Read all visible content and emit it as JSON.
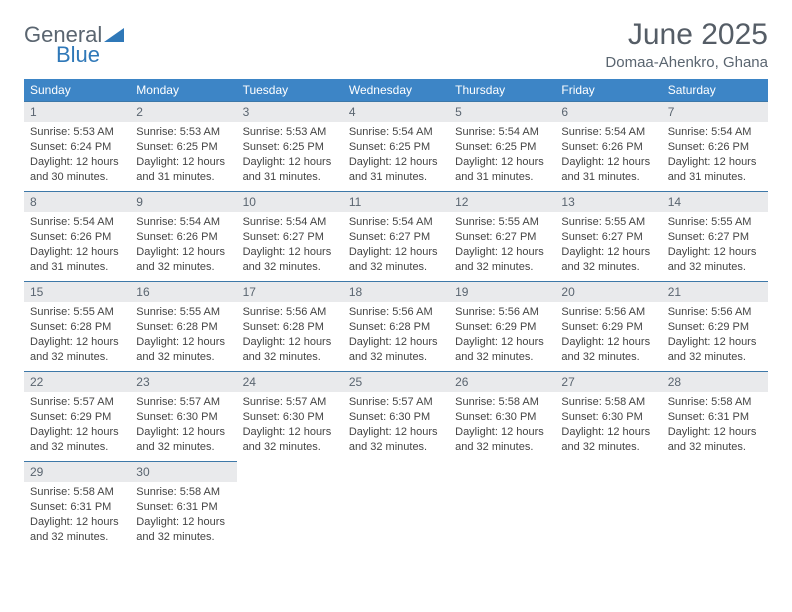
{
  "logo": {
    "word1": "General",
    "word2": "Blue"
  },
  "header": {
    "month": "June 2025",
    "location": "Domaa-Ahenkro, Ghana"
  },
  "style": {
    "header_bg": "#3d85c6",
    "header_text": "#ffffff",
    "daynum_bg": "#e9eaec",
    "daynum_border": "#3d78a8",
    "text_color": "#444444",
    "title_color": "#555d66"
  },
  "weekdays": [
    "Sunday",
    "Monday",
    "Tuesday",
    "Wednesday",
    "Thursday",
    "Friday",
    "Saturday"
  ],
  "days": [
    {
      "n": "1",
      "sr": "5:53 AM",
      "ss": "6:24 PM",
      "dl": "12 hours and 30 minutes."
    },
    {
      "n": "2",
      "sr": "5:53 AM",
      "ss": "6:25 PM",
      "dl": "12 hours and 31 minutes."
    },
    {
      "n": "3",
      "sr": "5:53 AM",
      "ss": "6:25 PM",
      "dl": "12 hours and 31 minutes."
    },
    {
      "n": "4",
      "sr": "5:54 AM",
      "ss": "6:25 PM",
      "dl": "12 hours and 31 minutes."
    },
    {
      "n": "5",
      "sr": "5:54 AM",
      "ss": "6:25 PM",
      "dl": "12 hours and 31 minutes."
    },
    {
      "n": "6",
      "sr": "5:54 AM",
      "ss": "6:26 PM",
      "dl": "12 hours and 31 minutes."
    },
    {
      "n": "7",
      "sr": "5:54 AM",
      "ss": "6:26 PM",
      "dl": "12 hours and 31 minutes."
    },
    {
      "n": "8",
      "sr": "5:54 AM",
      "ss": "6:26 PM",
      "dl": "12 hours and 31 minutes."
    },
    {
      "n": "9",
      "sr": "5:54 AM",
      "ss": "6:26 PM",
      "dl": "12 hours and 32 minutes."
    },
    {
      "n": "10",
      "sr": "5:54 AM",
      "ss": "6:27 PM",
      "dl": "12 hours and 32 minutes."
    },
    {
      "n": "11",
      "sr": "5:54 AM",
      "ss": "6:27 PM",
      "dl": "12 hours and 32 minutes."
    },
    {
      "n": "12",
      "sr": "5:55 AM",
      "ss": "6:27 PM",
      "dl": "12 hours and 32 minutes."
    },
    {
      "n": "13",
      "sr": "5:55 AM",
      "ss": "6:27 PM",
      "dl": "12 hours and 32 minutes."
    },
    {
      "n": "14",
      "sr": "5:55 AM",
      "ss": "6:27 PM",
      "dl": "12 hours and 32 minutes."
    },
    {
      "n": "15",
      "sr": "5:55 AM",
      "ss": "6:28 PM",
      "dl": "12 hours and 32 minutes."
    },
    {
      "n": "16",
      "sr": "5:55 AM",
      "ss": "6:28 PM",
      "dl": "12 hours and 32 minutes."
    },
    {
      "n": "17",
      "sr": "5:56 AM",
      "ss": "6:28 PM",
      "dl": "12 hours and 32 minutes."
    },
    {
      "n": "18",
      "sr": "5:56 AM",
      "ss": "6:28 PM",
      "dl": "12 hours and 32 minutes."
    },
    {
      "n": "19",
      "sr": "5:56 AM",
      "ss": "6:29 PM",
      "dl": "12 hours and 32 minutes."
    },
    {
      "n": "20",
      "sr": "5:56 AM",
      "ss": "6:29 PM",
      "dl": "12 hours and 32 minutes."
    },
    {
      "n": "21",
      "sr": "5:56 AM",
      "ss": "6:29 PM",
      "dl": "12 hours and 32 minutes."
    },
    {
      "n": "22",
      "sr": "5:57 AM",
      "ss": "6:29 PM",
      "dl": "12 hours and 32 minutes."
    },
    {
      "n": "23",
      "sr": "5:57 AM",
      "ss": "6:30 PM",
      "dl": "12 hours and 32 minutes."
    },
    {
      "n": "24",
      "sr": "5:57 AM",
      "ss": "6:30 PM",
      "dl": "12 hours and 32 minutes."
    },
    {
      "n": "25",
      "sr": "5:57 AM",
      "ss": "6:30 PM",
      "dl": "12 hours and 32 minutes."
    },
    {
      "n": "26",
      "sr": "5:58 AM",
      "ss": "6:30 PM",
      "dl": "12 hours and 32 minutes."
    },
    {
      "n": "27",
      "sr": "5:58 AM",
      "ss": "6:30 PM",
      "dl": "12 hours and 32 minutes."
    },
    {
      "n": "28",
      "sr": "5:58 AM",
      "ss": "6:31 PM",
      "dl": "12 hours and 32 minutes."
    },
    {
      "n": "29",
      "sr": "5:58 AM",
      "ss": "6:31 PM",
      "dl": "12 hours and 32 minutes."
    },
    {
      "n": "30",
      "sr": "5:58 AM",
      "ss": "6:31 PM",
      "dl": "12 hours and 32 minutes."
    }
  ],
  "labels": {
    "sunrise": "Sunrise: ",
    "sunset": "Sunset: ",
    "daylight": "Daylight: "
  }
}
